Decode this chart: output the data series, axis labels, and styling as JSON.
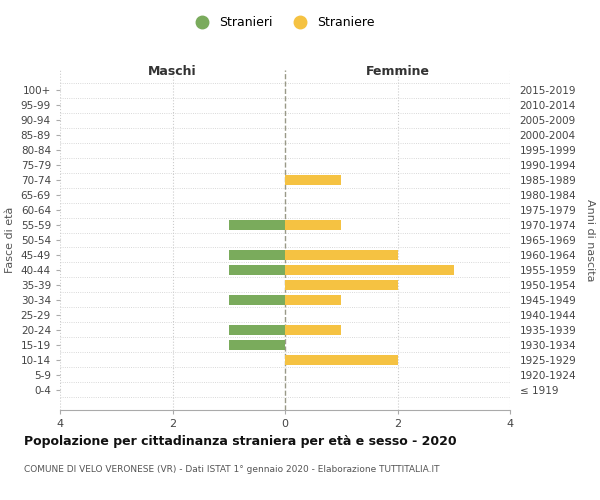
{
  "age_groups": [
    "100+",
    "95-99",
    "90-94",
    "85-89",
    "80-84",
    "75-79",
    "70-74",
    "65-69",
    "60-64",
    "55-59",
    "50-54",
    "45-49",
    "40-44",
    "35-39",
    "30-34",
    "25-29",
    "20-24",
    "15-19",
    "10-14",
    "5-9",
    "0-4"
  ],
  "birth_years": [
    "≤ 1919",
    "1920-1924",
    "1925-1929",
    "1930-1934",
    "1935-1939",
    "1940-1944",
    "1945-1949",
    "1950-1954",
    "1955-1959",
    "1960-1964",
    "1965-1969",
    "1970-1974",
    "1975-1979",
    "1980-1984",
    "1985-1989",
    "1990-1994",
    "1995-1999",
    "2000-2004",
    "2005-2009",
    "2010-2014",
    "2015-2019"
  ],
  "maschi": [
    0,
    0,
    0,
    0,
    0,
    0,
    0,
    0,
    0,
    1,
    0,
    1,
    1,
    0,
    1,
    0,
    1,
    1,
    0,
    0,
    0
  ],
  "femmine": [
    0,
    0,
    0,
    0,
    0,
    0,
    1,
    0,
    0,
    1,
    0,
    2,
    3,
    2,
    1,
    0,
    1,
    0,
    2,
    0,
    0
  ],
  "color_maschi": "#7aab5c",
  "color_femmine": "#f5c242",
  "title": "Popolazione per cittadinanza straniera per età e sesso - 2020",
  "subtitle": "COMUNE DI VELO VERONESE (VR) - Dati ISTAT 1° gennaio 2020 - Elaborazione TUTTITALIA.IT",
  "ylabel_left": "Fasce di età",
  "ylabel_right": "Anni di nascita",
  "xlabel_left": "Maschi",
  "xlabel_right": "Femmine",
  "legend_maschi": "Stranieri",
  "legend_femmine": "Straniere",
  "xlim": 4,
  "bg_color": "#ffffff",
  "grid_color": "#cccccc",
  "center_line_color": "#999988"
}
